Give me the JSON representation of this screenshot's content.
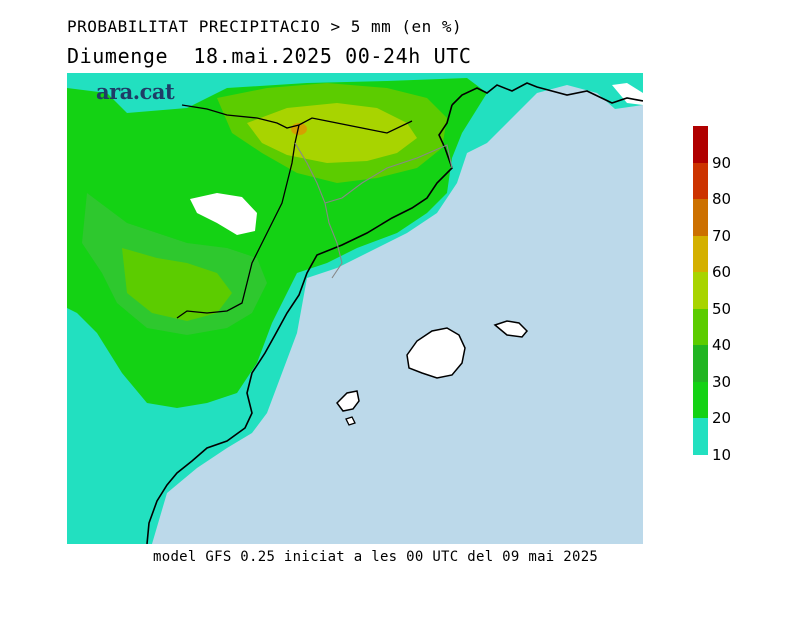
{
  "title_line1": "PROBABILITAT PRECIPITACIO > 5 mm (en %)",
  "title_line2": "Diumenge  18.mai.2025 00-24h UTC",
  "footer": "model GFS 0.25 iniciat a les 00 UTC del 09 mai 2025",
  "logo": "ara.cat",
  "colorbar": {
    "labels": [
      "90",
      "80",
      "70",
      "60",
      "50",
      "40",
      "30",
      "20",
      "10"
    ],
    "colors": [
      "#b00000",
      "#cc3300",
      "#cc7000",
      "#d4b000",
      "#a8d400",
      "#5ccc00",
      "#22b522",
      "#14d214",
      "#22e0c0"
    ]
  },
  "colors": {
    "sea": "#bcd9ea",
    "cyan_10": "#22e0c0",
    "green_20": "#14d214",
    "green_30": "#2ec82e",
    "green_40": "#5ccc00",
    "yellowgreen_50": "#a8d400",
    "orange_60": "#d4a000"
  }
}
